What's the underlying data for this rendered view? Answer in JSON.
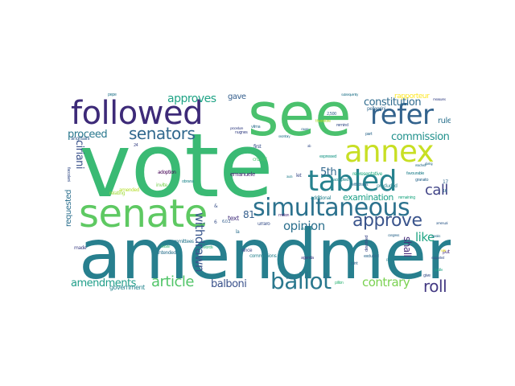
{
  "words": [
    {
      "text": "vote",
      "color": "#3aba74"
    },
    {
      "text": "amendment",
      "color": "#277f8e"
    },
    {
      "text": "see",
      "color": "#4ac16d"
    },
    {
      "text": "followed",
      "color": "#3d2a78"
    },
    {
      "text": "senate",
      "color": "#5ec962"
    },
    {
      "text": "simultaneous",
      "color": "#2c728e"
    },
    {
      "text": "annex",
      "color": "#c8df24"
    },
    {
      "text": "refer",
      "color": "#33638d"
    },
    {
      "text": "tabled",
      "color": "#26828e"
    },
    {
      "text": "ballot",
      "color": "#2a788e"
    },
    {
      "text": "senators",
      "color": "#31688e"
    },
    {
      "text": "approve",
      "color": "#3a548c"
    },
    {
      "text": "roll",
      "color": "#443a83"
    },
    {
      "text": "call",
      "color": "#414487"
    },
    {
      "text": "article",
      "color": "#52c569"
    },
    {
      "text": "withdrawn",
      "color": "#39568c"
    },
    {
      "text": "contrary",
      "color": "#7ad151"
    },
    {
      "text": "opinion",
      "color": "#2d708e"
    },
    {
      "text": "approves",
      "color": "#20a486"
    },
    {
      "text": "constitution",
      "color": "#2f6b8e"
    },
    {
      "text": "commission",
      "color": "#21918c"
    },
    {
      "text": "amendments",
      "color": "#1f9e89"
    },
    {
      "text": "balboni",
      "color": "#3b528b"
    },
    {
      "text": "examination",
      "color": "#1fa188"
    },
    {
      "text": "5th",
      "color": "#31688e"
    },
    {
      "text": "81",
      "color": "#355f8d"
    },
    {
      "text": "like",
      "color": "#21a685"
    },
    {
      "text": "proceed",
      "color": "#2a788e"
    },
    {
      "text": "ciriani",
      "color": "#3b528b"
    },
    {
      "text": "shall",
      "color": "#472d7b"
    },
    {
      "text": "requested",
      "color": "#2d708e"
    },
    {
      "text": "rule",
      "color": "#2c728e"
    },
    {
      "text": "gave",
      "color": "#355f8d"
    },
    {
      "text": "rapporteur",
      "color": "#fde725"
    },
    {
      "text": "government",
      "color": "#25858e"
    },
    {
      "text": "text",
      "color": "#46337e"
    },
    {
      "text": "emanuele",
      "color": "#482475"
    },
    {
      "text": "adoption",
      "color": "#440154"
    },
    {
      "text": "first",
      "color": "#3b528b"
    },
    {
      "text": "crucioli",
      "color": "#4ac16d"
    },
    {
      "text": "additional",
      "color": "#26828e"
    },
    {
      "text": "remaining",
      "color": "#22a884"
    },
    {
      "text": "precluded",
      "color": "#26828e"
    },
    {
      "text": "representative",
      "color": "#25ab82"
    },
    {
      "text": "expressed",
      "color": "#1f9a8a"
    },
    {
      "text": "accepted",
      "color": "#23898e"
    },
    {
      "text": "committees",
      "color": "#2a788e"
    },
    {
      "text": "commissions",
      "color": "#26828e"
    },
    {
      "text": "since",
      "color": "#3e4989"
    },
    {
      "text": "urraro",
      "color": "#3b528b"
    },
    {
      "text": "moion",
      "color": "#472d7b"
    },
    {
      "text": "words",
      "color": "#35b779"
    },
    {
      "text": "invite",
      "color": "#7ad151"
    },
    {
      "text": "intended",
      "color": "#2c728e"
    },
    {
      "text": "amended",
      "color": "#b5de2b"
    },
    {
      "text": "relating",
      "color": "#a0da39"
    },
    {
      "text": "made",
      "color": "#414487"
    },
    {
      "text": "angrisani",
      "color": "#355f8d"
    },
    {
      "text": "pepe",
      "color": "#2a788e"
    },
    {
      "text": "nugnes",
      "color": "#3e4989"
    },
    {
      "text": "pellegrini",
      "color": "#31688e"
    },
    {
      "text": "part",
      "color": "#306a8e"
    },
    {
      "text": "put",
      "color": "#472c7a"
    },
    {
      "text": "let",
      "color": "#3e4c8a"
    },
    {
      "text": "vilma",
      "color": "#2e6f8e"
    },
    {
      "text": "2,500",
      "color": "#33638d"
    },
    {
      "text": "therefore",
      "color": "#addc30"
    },
    {
      "text": "giving",
      "color": "#2e6e8e"
    },
    {
      "text": "favourable",
      "color": "#26828e"
    },
    {
      "text": "withdraws",
      "color": "#2e6e8e"
    },
    {
      "text": "described",
      "color": "#3e4989"
    },
    {
      "text": "granato",
      "color": "#306a8e"
    },
    {
      "text": "excluded",
      "color": "#306a8e"
    },
    {
      "text": "pillon",
      "color": "#35b779"
    },
    {
      "text": "joint",
      "color": "#31688e"
    },
    {
      "text": "agenda",
      "color": "#433e85"
    },
    {
      "text": "proposal",
      "color": "#26828e"
    },
    {
      "text": "supported",
      "color": "#3b528b"
    },
    {
      "text": "give",
      "color": "#3b528b"
    },
    {
      "text": "secretary",
      "color": "#2a788e"
    },
    {
      "text": "procedure",
      "color": "#3e4989"
    },
    {
      "text": "remind",
      "color": "#3b528b"
    },
    {
      "text": "rule",
      "color": "#f1e51d"
    },
    {
      "text": "speaks",
      "color": "#2d708e"
    },
    {
      "text": "6.0.1",
      "color": "#355f8d"
    },
    {
      "text": "la",
      "color": "#2d708e"
    },
    {
      "text": "subsequently",
      "color": "#2a788e"
    },
    {
      "text": "chamber",
      "color": "#26828e"
    },
    {
      "text": "congress",
      "color": "#306a8e"
    },
    {
      "text": "ab",
      "color": "#3b528b"
    },
    {
      "text": "cause",
      "color": "#306a8e"
    },
    {
      "text": "obrana",
      "color": "#23898e"
    },
    {
      "text": "debate",
      "color": "#35b779"
    },
    {
      "text": "aura",
      "color": "#26828e"
    },
    {
      "text": "reached",
      "color": "#2d708e"
    },
    {
      "text": "faccolani",
      "color": "#3b528b"
    },
    {
      "text": "pacifie",
      "color": "#20a486"
    },
    {
      "text": "measures",
      "color": "#3e4989"
    },
    {
      "text": "amenual",
      "color": "#355f8d"
    },
    {
      "text": "17",
      "color": "#306a8e"
    },
    {
      "text": "16",
      "color": "#306a8e"
    },
    {
      "text": "24",
      "color": "#3e4989"
    },
    {
      "text": "&",
      "color": "#3b528b"
    },
    {
      "text": "6",
      "color": "#3b528b"
    }
  ]
}
